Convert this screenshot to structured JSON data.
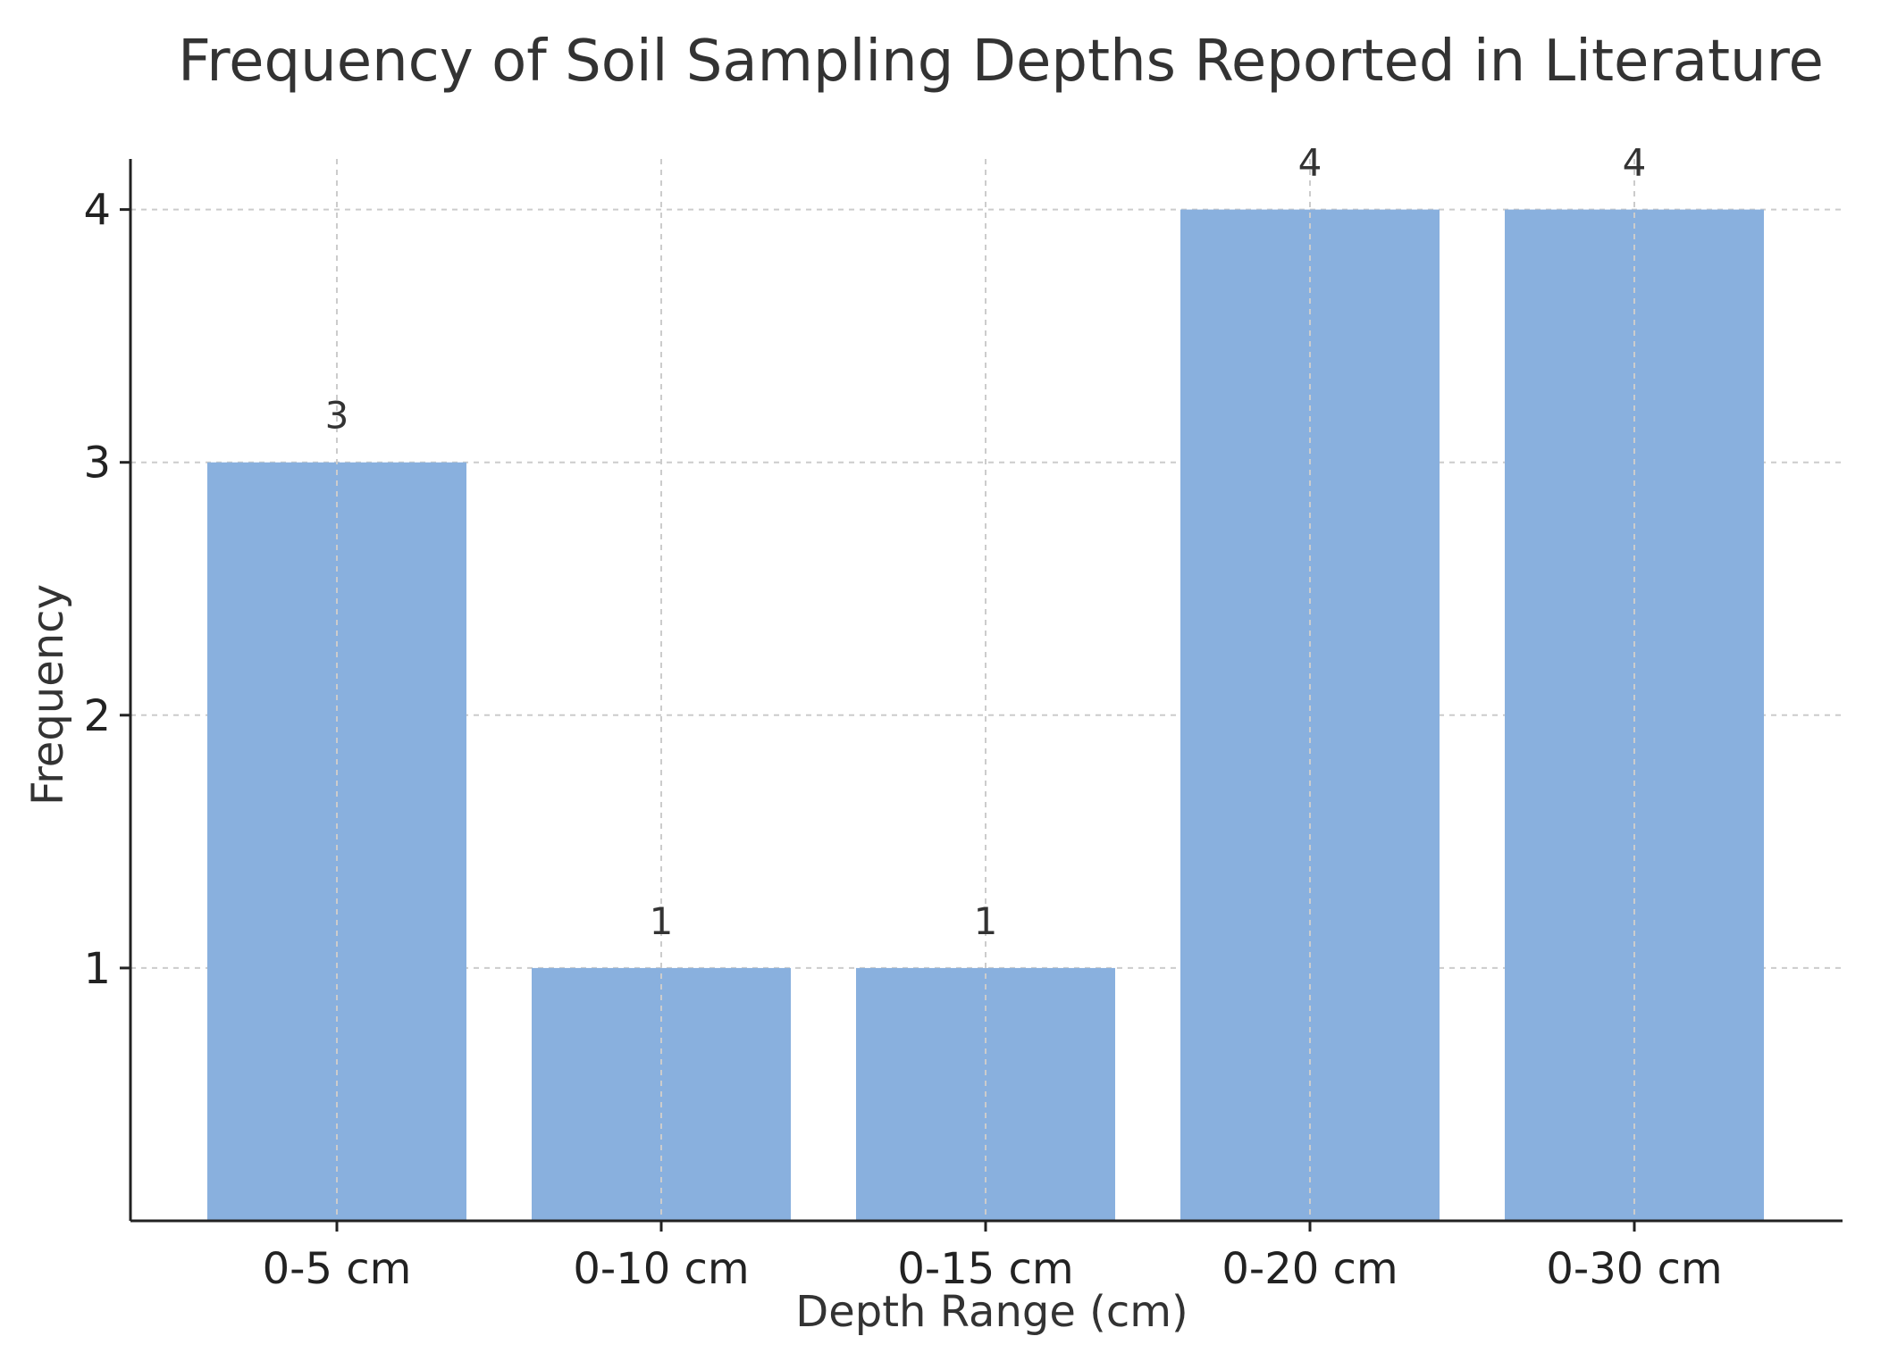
{
  "chart_data": {
    "type": "bar",
    "title": "Frequency of Soil Sampling Depths Reported in Literature",
    "xlabel": "Depth Range (cm)",
    "ylabel": "Frequency",
    "categories": [
      "0-5 cm",
      "0-10 cm",
      "0-15 cm",
      "0-20 cm",
      "0-30 cm"
    ],
    "values": [
      3,
      1,
      1,
      4,
      4
    ],
    "data_labels": [
      "3",
      "1",
      "1",
      "4",
      "4"
    ],
    "yticks": [
      1,
      2,
      3,
      4
    ],
    "ytick_labels": [
      "1",
      "2",
      "3",
      "4"
    ],
    "ylim": [
      0,
      4.2
    ],
    "grid": true,
    "bar_color": "#89b0de"
  }
}
